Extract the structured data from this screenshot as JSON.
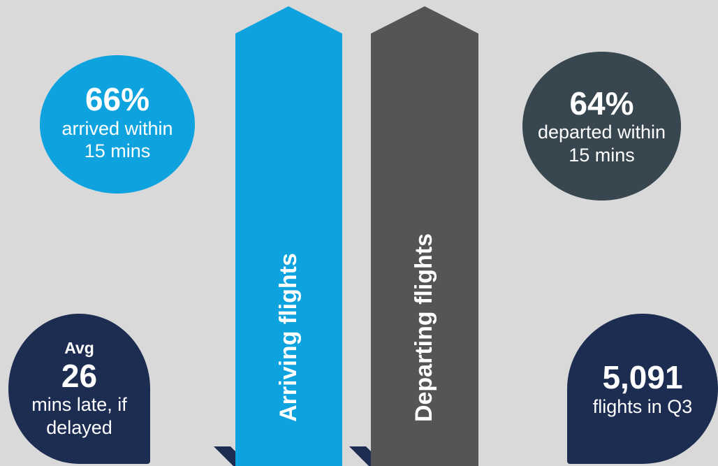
{
  "arrivals": {
    "arrow_label": "Arriving flights",
    "stat_value": "66%",
    "stat_line1": "arrived within",
    "stat_line2": "15 mins"
  },
  "departures": {
    "arrow_label": "Departing flights",
    "stat_value": "64%",
    "stat_line1": "departed within",
    "stat_line2": "15 mins"
  },
  "delay": {
    "prefix": "Avg",
    "value": "26",
    "line1": "mins late, if",
    "line2": "delayed"
  },
  "volume": {
    "value": "5,091",
    "line1": "flights in Q3"
  },
  "colors": {
    "background": "#d9d9d9",
    "arrival_blue": "#0ea3de",
    "departure_grey": "#555555",
    "departure_bubble": "#37464f",
    "navy": "#1d2d52"
  }
}
